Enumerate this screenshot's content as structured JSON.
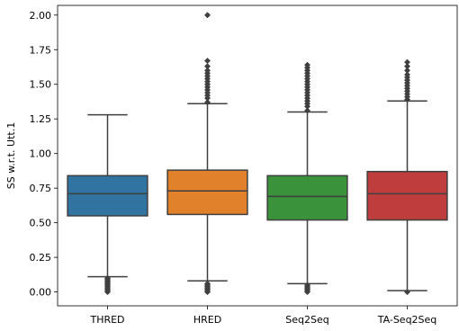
{
  "chart_data": {
    "type": "box",
    "title": "",
    "xlabel": "",
    "ylabel": "SS w.r.t. Utt.1",
    "ylim": [
      -0.1,
      2.07
    ],
    "yticks": [
      0.0,
      0.25,
      0.5,
      0.75,
      1.0,
      1.25,
      1.5,
      1.75,
      2.0
    ],
    "ytick_labels": [
      "0.00",
      "0.25",
      "0.50",
      "0.75",
      "1.00",
      "1.25",
      "1.50",
      "1.75",
      "2.00"
    ],
    "grid": false,
    "legend": "none",
    "categories": [
      "THRED",
      "HRED",
      "Seq2Seq",
      "TA-Seq2Seq"
    ],
    "boxes": [
      {
        "name": "THRED",
        "color": "#3274a1",
        "q1": 0.55,
        "median": 0.71,
        "q3": 0.84,
        "whisker_low": 0.11,
        "whisker_high": 1.28,
        "outliers_low": [
          0.0,
          0.01,
          0.02,
          0.03,
          0.04,
          0.05,
          0.06,
          0.07,
          0.08,
          0.09,
          0.1
        ],
        "outliers_high": []
      },
      {
        "name": "HRED",
        "color": "#e1812c",
        "q1": 0.56,
        "median": 0.73,
        "q3": 0.88,
        "whisker_low": 0.08,
        "whisker_high": 1.36,
        "outliers_low": [
          0.0,
          0.01,
          0.02,
          0.03,
          0.04,
          0.05,
          0.06
        ],
        "outliers_high": [
          1.37,
          1.4,
          1.42,
          1.44,
          1.46,
          1.48,
          1.5,
          1.52,
          1.54,
          1.56,
          1.58,
          1.6,
          1.63,
          1.67,
          2.0
        ]
      },
      {
        "name": "Seq2Seq",
        "color": "#3a923a",
        "q1": 0.52,
        "median": 0.69,
        "q3": 0.84,
        "whisker_low": 0.06,
        "whisker_high": 1.3,
        "outliers_low": [
          0.0,
          0.01,
          0.02,
          0.03,
          0.04,
          0.05
        ],
        "outliers_high": [
          1.31,
          1.34,
          1.36,
          1.38,
          1.4,
          1.42,
          1.44,
          1.46,
          1.48,
          1.5,
          1.52,
          1.54,
          1.56,
          1.58,
          1.6,
          1.62,
          1.64
        ]
      },
      {
        "name": "TA-Seq2Seq",
        "color": "#c03d3e",
        "q1": 0.52,
        "median": 0.71,
        "q3": 0.87,
        "whisker_low": 0.01,
        "whisker_high": 1.38,
        "outliers_low": [
          0.0
        ],
        "outliers_high": [
          1.39,
          1.41,
          1.43,
          1.45,
          1.47,
          1.49,
          1.51,
          1.53,
          1.55,
          1.57,
          1.6,
          1.63,
          1.66
        ]
      }
    ]
  }
}
